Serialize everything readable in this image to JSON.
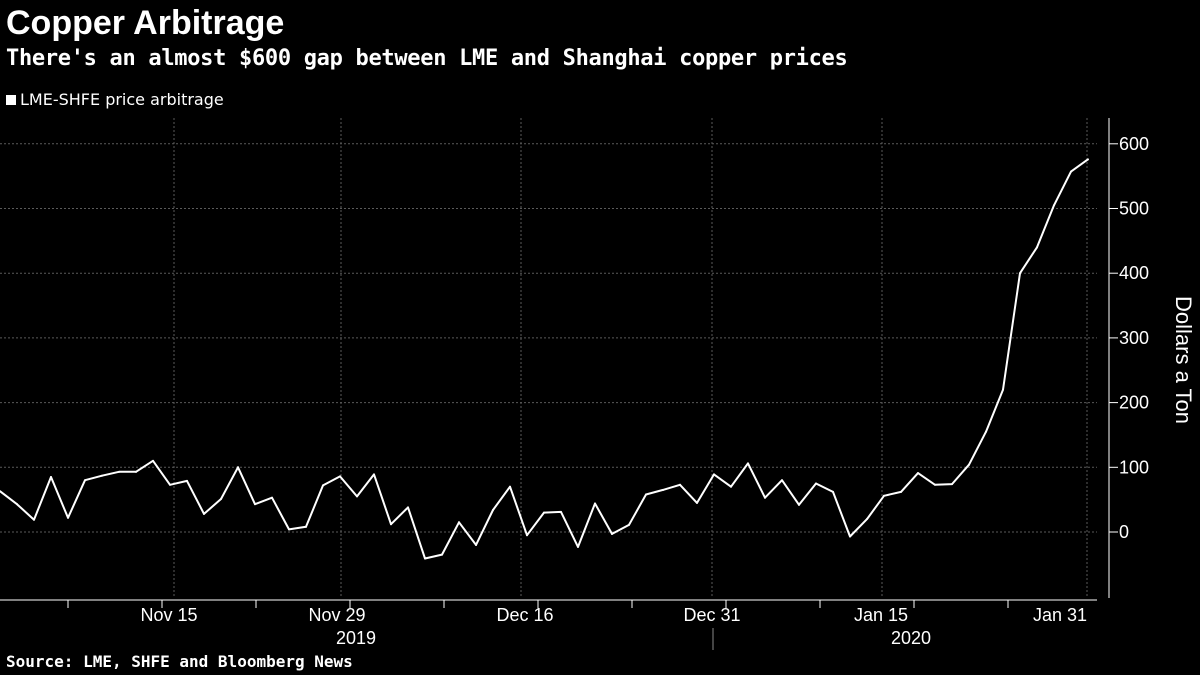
{
  "header": {
    "title": "Copper Arbitrage",
    "subtitle": "There's an almost $600 gap between LME and Shanghai copper prices"
  },
  "footer": {
    "source": "Source: LME, SHFE and Bloomberg News"
  },
  "colors": {
    "background": "#000000",
    "line": "#ffffff",
    "grid": "#5a5a5a"
  },
  "chart_data": {
    "type": "line",
    "ylabel": "Dollars a Ton",
    "ylim": [
      -100,
      640
    ],
    "yticks": [
      0,
      100,
      200,
      300,
      400,
      500,
      600
    ],
    "grid": true,
    "y_axis_side": "right",
    "legend_position": "top-left",
    "x_tick_labels": [
      "Nov 15",
      "Nov 29",
      "Dec 16",
      "Dec 31",
      "Jan 15",
      "Jan 31"
    ],
    "x_year_labels": [
      "2019",
      "2020"
    ],
    "series": [
      {
        "name": "LME-SHFE price arbitrage",
        "values": [
          63,
          43,
          19,
          85,
          22,
          80,
          87,
          93,
          93,
          110,
          73,
          79,
          28,
          51,
          100,
          43,
          53,
          4,
          8,
          72,
          86,
          55,
          89,
          12,
          38,
          -41,
          -35,
          15,
          -20,
          34,
          70,
          -5,
          30,
          31,
          -23,
          44,
          -3,
          11,
          58,
          65,
          73,
          45,
          89,
          70,
          106,
          53,
          80,
          42,
          75,
          62,
          -7,
          20,
          56,
          62,
          91,
          73,
          74,
          104,
          155,
          220,
          400,
          440,
          505,
          557,
          576
        ]
      }
    ]
  }
}
